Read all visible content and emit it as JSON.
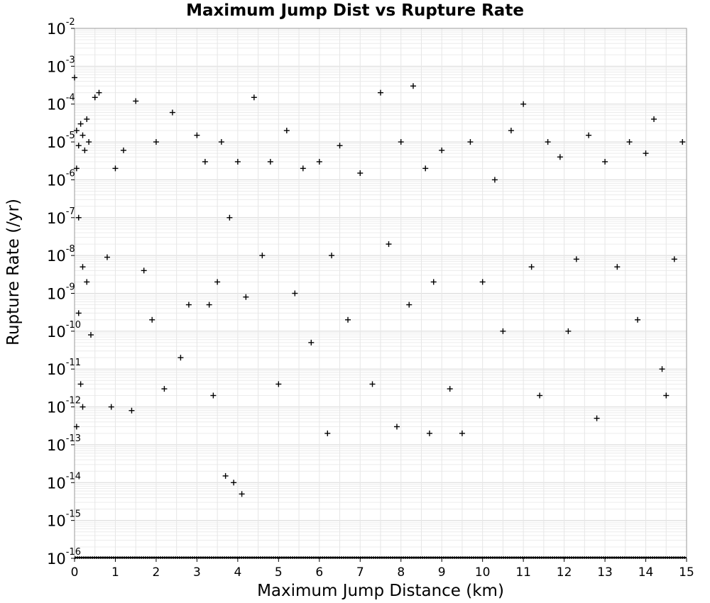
{
  "chart_data": {
    "type": "scatter",
    "title": "Maximum Jump Dist vs Rupture Rate",
    "xlabel": "Maximum Jump Distance (km)",
    "ylabel": "Rupture Rate (/yr)",
    "xlim": [
      0,
      15
    ],
    "ylim": [
      1e-16,
      0.01
    ],
    "y_scale": "log",
    "grid": true,
    "marker": "plus",
    "marker_color": "#000000",
    "x_ticks": [
      "0",
      "1",
      "2",
      "3",
      "4",
      "5",
      "6",
      "7",
      "8",
      "9",
      "10",
      "11",
      "12",
      "13",
      "14",
      "15"
    ],
    "y_ticks": [
      {
        "base": "10",
        "exp": "-16"
      },
      {
        "base": "10",
        "exp": "-15"
      },
      {
        "base": "10",
        "exp": "-14"
      },
      {
        "base": "10",
        "exp": "-13"
      },
      {
        "base": "10",
        "exp": "-12"
      },
      {
        "base": "10",
        "exp": "-11"
      },
      {
        "base": "10",
        "exp": "-10"
      },
      {
        "base": "10",
        "exp": "-9"
      },
      {
        "base": "10",
        "exp": "-8"
      },
      {
        "base": "10",
        "exp": "-7"
      },
      {
        "base": "10",
        "exp": "-6"
      },
      {
        "base": "10",
        "exp": "-5"
      },
      {
        "base": "10",
        "exp": "-4"
      },
      {
        "base": "10",
        "exp": "-3"
      },
      {
        "base": "10",
        "exp": "-2"
      }
    ],
    "points": [
      [
        0.0,
        0.0005
      ],
      [
        0.05,
        2e-05
      ],
      [
        0.1,
        8e-06
      ],
      [
        0.15,
        3e-05
      ],
      [
        0.2,
        1.5e-05
      ],
      [
        0.25,
        6e-06
      ],
      [
        0.3,
        4e-05
      ],
      [
        0.35,
        1e-05
      ],
      [
        0.05,
        2e-06
      ],
      [
        0.1,
        1e-07
      ],
      [
        0.2,
        5e-09
      ],
      [
        0.1,
        3e-10
      ],
      [
        0.3,
        2e-09
      ],
      [
        0.05,
        3e-13
      ],
      [
        0.2,
        1e-12
      ],
      [
        0.15,
        4e-12
      ],
      [
        0.4,
        8e-11
      ],
      [
        0.5,
        0.00015
      ],
      [
        0.6,
        0.0002
      ],
      [
        0.8,
        9e-09
      ],
      [
        0.9,
        1e-12
      ],
      [
        1.0,
        2e-06
      ],
      [
        1.2,
        6e-06
      ],
      [
        1.4,
        8e-13
      ],
      [
        1.5,
        0.00012
      ],
      [
        1.7,
        4e-09
      ],
      [
        1.9,
        2e-10
      ],
      [
        2.0,
        1e-05
      ],
      [
        2.2,
        3e-12
      ],
      [
        2.4,
        6e-05
      ],
      [
        2.6,
        2e-11
      ],
      [
        2.8,
        5e-10
      ],
      [
        3.0,
        1.5e-05
      ],
      [
        3.2,
        3e-06
      ],
      [
        3.3,
        5e-10
      ],
      [
        3.4,
        2e-12
      ],
      [
        3.5,
        2e-09
      ],
      [
        3.6,
        1e-05
      ],
      [
        3.7,
        1.5e-14
      ],
      [
        3.8,
        1e-07
      ],
      [
        3.9,
        1e-14
      ],
      [
        4.0,
        3e-06
      ],
      [
        4.1,
        5e-15
      ],
      [
        4.2,
        8e-10
      ],
      [
        4.4,
        0.00015
      ],
      [
        4.6,
        1e-08
      ],
      [
        4.8,
        3e-06
      ],
      [
        5.0,
        4e-12
      ],
      [
        5.2,
        2e-05
      ],
      [
        5.4,
        1e-09
      ],
      [
        5.6,
        2e-06
      ],
      [
        5.8,
        5e-11
      ],
      [
        6.0,
        3e-06
      ],
      [
        6.2,
        2e-13
      ],
      [
        6.3,
        1e-08
      ],
      [
        6.5,
        8e-06
      ],
      [
        6.7,
        2e-10
      ],
      [
        7.0,
        1.5e-06
      ],
      [
        7.3,
        4e-12
      ],
      [
        7.5,
        0.0002
      ],
      [
        7.7,
        2e-08
      ],
      [
        7.9,
        3e-13
      ],
      [
        8.0,
        1e-05
      ],
      [
        8.2,
        5e-10
      ],
      [
        8.3,
        0.0003
      ],
      [
        8.6,
        2e-06
      ],
      [
        8.7,
        2e-13
      ],
      [
        8.8,
        2e-09
      ],
      [
        9.0,
        6e-06
      ],
      [
        9.2,
        3e-12
      ],
      [
        9.5,
        2e-13
      ],
      [
        9.7,
        1e-05
      ],
      [
        10.0,
        2e-09
      ],
      [
        10.3,
        1e-06
      ],
      [
        10.5,
        1e-10
      ],
      [
        10.7,
        2e-05
      ],
      [
        11.0,
        0.0001
      ],
      [
        11.2,
        5e-09
      ],
      [
        11.4,
        2e-12
      ],
      [
        11.6,
        1e-05
      ],
      [
        11.9,
        4e-06
      ],
      [
        12.1,
        1e-10
      ],
      [
        12.3,
        8e-09
      ],
      [
        12.6,
        1.5e-05
      ],
      [
        12.8,
        5e-13
      ],
      [
        13.0,
        3e-06
      ],
      [
        13.3,
        5e-09
      ],
      [
        13.6,
        1e-05
      ],
      [
        13.8,
        2e-10
      ],
      [
        14.0,
        5e-06
      ],
      [
        14.2,
        4e-05
      ],
      [
        14.4,
        1e-11
      ],
      [
        14.5,
        2e-12
      ],
      [
        14.7,
        8e-09
      ],
      [
        14.9,
        1e-05
      ]
    ],
    "floor_y": 1e-16
  }
}
